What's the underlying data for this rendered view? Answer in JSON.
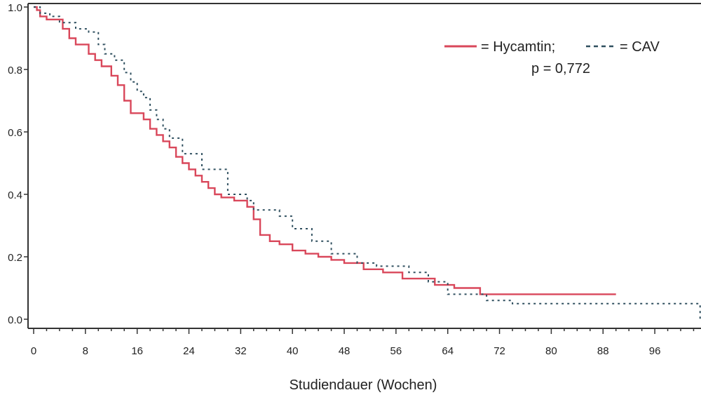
{
  "chart_data": {
    "type": "line",
    "xlabel": "Studiendauer (Wochen)",
    "ylabel": "",
    "xlim": [
      0,
      100
    ],
    "ylim": [
      0,
      1.0
    ],
    "x_ticks": [
      0,
      8,
      16,
      24,
      32,
      40,
      48,
      56,
      64,
      72,
      80,
      88,
      96
    ],
    "x_tick_labels": [
      "0",
      "8",
      "16",
      "24",
      "32",
      "40",
      "48",
      "56",
      "64",
      "72",
      "80",
      "88",
      "96"
    ],
    "y_ticks": [
      0.0,
      0.2,
      0.4,
      0.6,
      0.8,
      1.0
    ],
    "y_tick_labels": [
      "0.0",
      "0.2",
      "0.4",
      "0.6",
      "0.8",
      "1.0"
    ],
    "grid": false,
    "legend_position": "top-right",
    "annotation": "p = 0,772",
    "series": [
      {
        "name": "Hycamtin",
        "color": "#d9475a",
        "style": "solid",
        "step": true,
        "points": [
          [
            0,
            1.0
          ],
          [
            0.5,
            0.99
          ],
          [
            1.0,
            0.97
          ],
          [
            2.0,
            0.96
          ],
          [
            4.5,
            0.93
          ],
          [
            5.5,
            0.9
          ],
          [
            6.5,
            0.88
          ],
          [
            8.5,
            0.85
          ],
          [
            9.5,
            0.83
          ],
          [
            10.5,
            0.81
          ],
          [
            12.0,
            0.78
          ],
          [
            13.0,
            0.75
          ],
          [
            14.0,
            0.7
          ],
          [
            15.0,
            0.66
          ],
          [
            17.0,
            0.64
          ],
          [
            18.0,
            0.61
          ],
          [
            19.0,
            0.59
          ],
          [
            20.0,
            0.57
          ],
          [
            21.0,
            0.55
          ],
          [
            22.0,
            0.52
          ],
          [
            23.0,
            0.5
          ],
          [
            24.0,
            0.48
          ],
          [
            25.0,
            0.46
          ],
          [
            26.0,
            0.44
          ],
          [
            27.0,
            0.42
          ],
          [
            28.0,
            0.4
          ],
          [
            29.0,
            0.39
          ],
          [
            31.0,
            0.38
          ],
          [
            33.0,
            0.36
          ],
          [
            34.0,
            0.32
          ],
          [
            35.0,
            0.27
          ],
          [
            36.5,
            0.25
          ],
          [
            38.0,
            0.24
          ],
          [
            40.0,
            0.22
          ],
          [
            42.0,
            0.21
          ],
          [
            44.0,
            0.2
          ],
          [
            46.0,
            0.19
          ],
          [
            48.0,
            0.18
          ],
          [
            51.0,
            0.16
          ],
          [
            54.0,
            0.15
          ],
          [
            57.0,
            0.13
          ],
          [
            62.0,
            0.11
          ],
          [
            65.0,
            0.1
          ],
          [
            69.0,
            0.08
          ],
          [
            90.0,
            0.08
          ]
        ]
      },
      {
        "name": "CAV",
        "color": "#2f4f5f",
        "style": "dashed",
        "step": true,
        "points": [
          [
            0,
            1.0
          ],
          [
            1.0,
            0.98
          ],
          [
            2.5,
            0.97
          ],
          [
            4.0,
            0.95
          ],
          [
            6.5,
            0.93
          ],
          [
            8.5,
            0.92
          ],
          [
            10.0,
            0.88
          ],
          [
            11.0,
            0.85
          ],
          [
            12.5,
            0.83
          ],
          [
            14.0,
            0.79
          ],
          [
            15.0,
            0.76
          ],
          [
            16.0,
            0.73
          ],
          [
            17.0,
            0.71
          ],
          [
            18.0,
            0.67
          ],
          [
            19.0,
            0.64
          ],
          [
            20.0,
            0.61
          ],
          [
            21.0,
            0.58
          ],
          [
            23.0,
            0.53
          ],
          [
            26.0,
            0.48
          ],
          [
            30.0,
            0.4
          ],
          [
            33.0,
            0.38
          ],
          [
            34.0,
            0.35
          ],
          [
            38.0,
            0.33
          ],
          [
            40.0,
            0.29
          ],
          [
            43.0,
            0.25
          ],
          [
            46.0,
            0.21
          ],
          [
            50.0,
            0.18
          ],
          [
            53.0,
            0.17
          ],
          [
            58.0,
            0.15
          ],
          [
            61.0,
            0.12
          ],
          [
            64.0,
            0.08
          ],
          [
            70.0,
            0.06
          ],
          [
            74.0,
            0.05
          ],
          [
            103.0,
            0.05
          ],
          [
            103.0,
            0.0
          ]
        ]
      }
    ]
  }
}
